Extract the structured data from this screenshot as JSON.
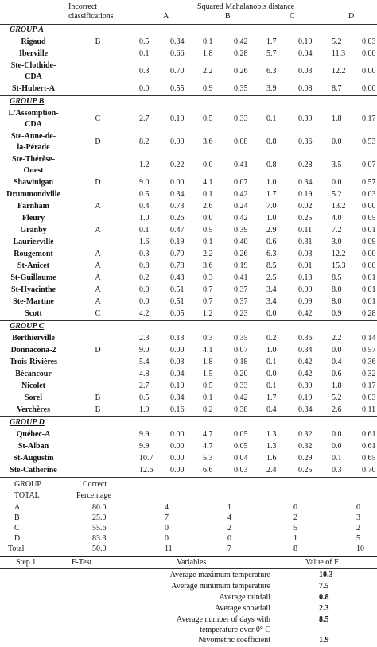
{
  "header": {
    "incorrect": [
      "Incorrect",
      "classifications"
    ],
    "distance_title": "Squared Mahalanobis distance",
    "cols": [
      "A",
      "B",
      "C",
      "D"
    ]
  },
  "groups": [
    {
      "title": "GROUP  A",
      "rows": [
        {
          "name": [
            "Rigaud"
          ],
          "inc": "B",
          "v": [
            "0.5",
            "0.34",
            "0.1",
            "0.42",
            "1.7",
            "0.19",
            "5.2",
            "0.03"
          ]
        },
        {
          "name": [
            "Iberville"
          ],
          "inc": "",
          "v": [
            "0.1",
            "0.66",
            "1.8",
            "0.28",
            "5.7",
            "0.04",
            "11.3",
            "0.00"
          ]
        },
        {
          "name": [
            "Ste-Clothide-",
            "CDA"
          ],
          "inc": "",
          "v": [
            "0.3",
            "0.70",
            "2.2",
            "0.26",
            "6.3",
            "0.03",
            "12.2",
            "0.00"
          ]
        },
        {
          "name": [
            "St-Hubert-A"
          ],
          "inc": "",
          "v": [
            "0.0",
            "0.55",
            "0.9",
            "0.35",
            "3.9",
            "0.08",
            "8.7",
            "0.00"
          ]
        }
      ]
    },
    {
      "title": "GROUP B",
      "rows": [
        {
          "name": [
            "L’Assomption-",
            "CDA"
          ],
          "inc": "C",
          "v": [
            "2.7",
            "0.10",
            "0.5",
            "0.33",
            "0.1",
            "0.39",
            "1.8",
            "0.17"
          ]
        },
        {
          "name": [
            "Ste-Anne-de-",
            "la-Pérade"
          ],
          "inc": "D",
          "v": [
            "8.2",
            "0.00",
            "3.6",
            "0.08",
            "0.8",
            "0.36",
            "0.0",
            "0.53"
          ]
        },
        {
          "name": [
            "Ste-Thérèse-",
            "Ouest"
          ],
          "inc": "",
          "v": [
            "1.2",
            "0.22",
            "0.0",
            "0.41",
            "0.8",
            "0.28",
            "3.5",
            "0.07"
          ]
        },
        {
          "name": [
            "Shawinigan"
          ],
          "inc": "D",
          "v": [
            "9.0",
            "0.00",
            "4.1",
            "0.07",
            "1.0",
            "0.34",
            "0.0",
            "0.57"
          ]
        },
        {
          "name": [
            "Drummondville"
          ],
          "inc": "",
          "v": [
            "0.5",
            "0.34",
            "0.1",
            "0.42",
            "1.7",
            "0.19",
            "5.2",
            "0.03"
          ]
        },
        {
          "name": [
            "Farnham"
          ],
          "inc": "A",
          "v": [
            "0.4",
            "0.73",
            "2.6",
            "0.24",
            "7.0",
            "0.02",
            "13.2",
            "0.00"
          ]
        },
        {
          "name": [
            "Fleury"
          ],
          "inc": "",
          "v": [
            "1.0",
            "0.26",
            "0.0",
            "0.42",
            "1.0",
            "0.25",
            "4.0",
            "0.05"
          ]
        },
        {
          "name": [
            "Granby"
          ],
          "inc": "A",
          "v": [
            "0.1",
            "0.47",
            "0.5",
            "0.39",
            "2.9",
            "0.11",
            "7.2",
            "0.01"
          ]
        },
        {
          "name": [
            "Laurierville"
          ],
          "inc": "",
          "v": [
            "1.6",
            "0.19",
            "0.1",
            "0.40",
            "0.6",
            "0.31",
            "3.0",
            "0.09"
          ]
        },
        {
          "name": [
            "Rougemont"
          ],
          "inc": "A",
          "v": [
            "0.3",
            "0.70",
            "2.2",
            "0.26",
            "6.3",
            "0.03",
            "12.2",
            "0.00"
          ]
        },
        {
          "name": [
            "St-Anicet"
          ],
          "inc": "A",
          "v": [
            "0.8",
            "0.78",
            "3.6",
            "0.19",
            "8.5",
            "0.01",
            "15.3",
            "0.00"
          ]
        },
        {
          "name": [
            "St-Guillaume"
          ],
          "inc": "A",
          "v": [
            "0.2",
            "0.43",
            "0.3",
            "0.41",
            "2.5",
            "0.13",
            "8.5",
            "0.01"
          ]
        },
        {
          "name": [
            "St-Hyacinthe"
          ],
          "inc": "A",
          "v": [
            "0.0",
            "0.51",
            "0.7",
            "0.37",
            "3.4",
            "0.09",
            "8.0",
            "0.01"
          ]
        },
        {
          "name": [
            "Ste-Martine"
          ],
          "inc": "A",
          "v": [
            "0.0",
            "0.51",
            "0.7",
            "0.37",
            "3.4",
            "0.09",
            "8.0",
            "0.01"
          ]
        },
        {
          "name": [
            "Scott"
          ],
          "inc": "C",
          "v": [
            "4.2",
            "0.05",
            "1.2",
            "0.23",
            "0.0",
            "0.42",
            "0.9",
            "0.28"
          ]
        }
      ]
    },
    {
      "title": "GROUP C",
      "rows": [
        {
          "name": [
            "Berthierville"
          ],
          "inc": "",
          "v": [
            "2.3",
            "0.13",
            "0.3",
            "0.35",
            "0.2",
            "0.36",
            "2.2",
            "0.14"
          ]
        },
        {
          "name": [
            "Donnacona-2"
          ],
          "inc": "D",
          "v": [
            "9.0",
            "0.00",
            "4.1",
            "0.07",
            "1.0",
            "0.34",
            "0.0",
            "0.57"
          ]
        },
        {
          "name": [
            "Trois-Rivières"
          ],
          "inc": "",
          "v": [
            "5.4",
            "0.03",
            "1.8",
            "0.18",
            "0.1",
            "0.42",
            "0.4",
            "0.36"
          ]
        },
        {
          "name": [
            "Bécancour"
          ],
          "inc": "",
          "v": [
            "4.8",
            "0.04",
            "1.5",
            "0.20",
            "0.0",
            "0.42",
            "0.6",
            "0.32"
          ]
        },
        {
          "name": [
            "Nicolet"
          ],
          "inc": "",
          "v": [
            "2.7",
            "0.10",
            "0.5",
            "0.33",
            "0.1",
            "0.39",
            "1.8",
            "0.17"
          ]
        },
        {
          "name": [
            "Sorel"
          ],
          "inc": "B",
          "v": [
            "0.5",
            "0.34",
            "0.1",
            "0.42",
            "1.7",
            "0.19",
            "5.2",
            "0.03"
          ]
        },
        {
          "name": [
            "Verchères"
          ],
          "inc": "B",
          "v": [
            "1.9",
            "0.16",
            "0.2",
            "0.38",
            "0.4",
            "0.34",
            "2.6",
            "0.11"
          ]
        }
      ]
    },
    {
      "title": "GROUP D",
      "rows": [
        {
          "name": [
            "Québec-A"
          ],
          "inc": "",
          "v": [
            "9.9",
            "0.00",
            "4.7",
            "0.05",
            "1.3",
            "0.32",
            "0.0",
            "0.61"
          ]
        },
        {
          "name": [
            "St-Alban"
          ],
          "inc": "",
          "v": [
            "9.9",
            "0.00",
            "4.7",
            "0.05",
            "1.3",
            "0.32",
            "0.0",
            "0.61"
          ]
        },
        {
          "name": [
            "St-Augustin"
          ],
          "inc": "",
          "v": [
            "10.7",
            "0.00",
            "5.3",
            "0.04",
            "1.6",
            "0.29",
            "0.1",
            "0.65"
          ]
        },
        {
          "name": [
            "Ste-Catherine"
          ],
          "inc": "",
          "v": [
            "12.6",
            "0.00",
            "6.6",
            "0.03",
            "2.4",
            "0.25",
            "0.3",
            "0.70"
          ]
        }
      ]
    }
  ],
  "summary": {
    "h_group": [
      "GROUP",
      "TOTAL"
    ],
    "h_correct": [
      "Correct",
      "Percentage"
    ],
    "rows": [
      {
        "g": "A",
        "p": "80.0",
        "c": [
          "4",
          "1",
          "0",
          "0"
        ]
      },
      {
        "g": "B",
        "p": "25.0",
        "c": [
          "7",
          "4",
          "2",
          "3"
        ]
      },
      {
        "g": "C",
        "p": "55.6",
        "c": [
          "0",
          "2",
          "5",
          "2"
        ]
      },
      {
        "g": "D",
        "p": "83.3",
        "c": [
          "0",
          "0",
          "1",
          "5"
        ]
      },
      {
        "g": "Total",
        "p": "50.0",
        "c": [
          "11",
          "7",
          "8",
          "10"
        ]
      }
    ]
  },
  "ftest": {
    "step": "Step 1:",
    "ftest": "F-Test",
    "variables": "Variables",
    "valueF": "Value of F",
    "rows": [
      {
        "label": [
          "Average maximum temperature"
        ],
        "val": "10.3"
      },
      {
        "label": [
          "Average minimum temperature"
        ],
        "val": "7.5"
      },
      {
        "label": [
          "Average rainfall"
        ],
        "val": "0.8"
      },
      {
        "label": [
          "Average snowfall"
        ],
        "val": "2.3"
      },
      {
        "label": [
          "Average number of days with",
          "temperature over 0° C"
        ],
        "val": "8.5"
      },
      {
        "label": [
          "Nivometric coefficient"
        ],
        "val": "1.9"
      }
    ]
  }
}
